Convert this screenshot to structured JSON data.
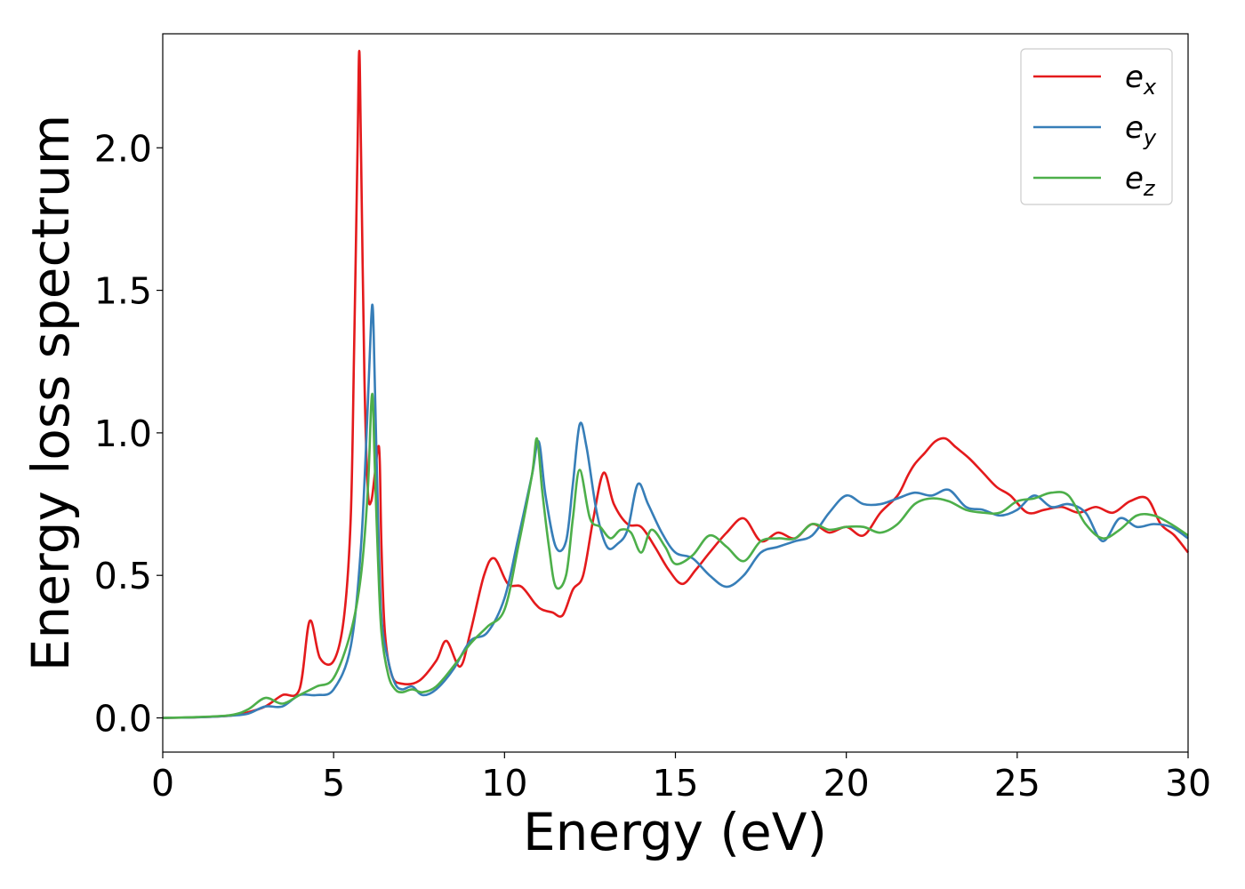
{
  "chart_data": {
    "type": "line",
    "xlabel": "Energy (eV)",
    "ylabel": "Energy loss spectrum",
    "xlim": [
      0,
      30
    ],
    "ylim": [
      -0.12,
      2.4
    ],
    "xticks": [
      0,
      5,
      10,
      15,
      20,
      25,
      30
    ],
    "xtick_labels": [
      "0",
      "5",
      "10",
      "15",
      "20",
      "25",
      "30"
    ],
    "yticks": [
      0.0,
      0.5,
      1.0,
      1.5,
      2.0
    ],
    "ytick_labels": [
      "0.0",
      "0.5",
      "1.0",
      "1.5",
      "2.0"
    ],
    "grid": false,
    "legend_position": "top-right",
    "series": [
      {
        "name": "e_x",
        "label_main": "e",
        "label_sub": "x",
        "color": "#e41a1c",
        "x": [
          0,
          1,
          2,
          2.5,
          3,
          3.5,
          4,
          4.3,
          4.6,
          5,
          5.3,
          5.5,
          5.6,
          5.7,
          5.75,
          5.8,
          5.9,
          6.0,
          6.1,
          6.2,
          6.3,
          6.35,
          6.4,
          6.5,
          6.7,
          7,
          7.5,
          8,
          8.3,
          8.7,
          9,
          9.4,
          9.7,
          10.1,
          10.5,
          10.9,
          11.1,
          11.4,
          11.7,
          12,
          12.3,
          12.6,
          12.9,
          13.2,
          13.6,
          14,
          14.4,
          14.8,
          15.2,
          15.6,
          16,
          16.5,
          17,
          17.5,
          18,
          18.5,
          19,
          19.5,
          20,
          20.5,
          21,
          21.5,
          21.8,
          22,
          22.3,
          22.6,
          22.9,
          23.2,
          23.6,
          24,
          24.4,
          24.8,
          25.3,
          25.8,
          26.3,
          26.8,
          27.3,
          27.8,
          28.3,
          28.8,
          29.2,
          29.6,
          30
        ],
        "y": [
          0,
          0.002,
          0.008,
          0.02,
          0.04,
          0.08,
          0.1,
          0.34,
          0.21,
          0.2,
          0.35,
          0.7,
          1.3,
          2.0,
          2.34,
          2.0,
          1.2,
          0.8,
          0.76,
          0.85,
          0.95,
          0.9,
          0.6,
          0.3,
          0.15,
          0.12,
          0.13,
          0.2,
          0.27,
          0.18,
          0.3,
          0.5,
          0.56,
          0.47,
          0.46,
          0.4,
          0.38,
          0.37,
          0.36,
          0.45,
          0.5,
          0.7,
          0.86,
          0.75,
          0.68,
          0.67,
          0.6,
          0.52,
          0.47,
          0.52,
          0.58,
          0.65,
          0.7,
          0.62,
          0.65,
          0.63,
          0.68,
          0.65,
          0.67,
          0.64,
          0.72,
          0.78,
          0.85,
          0.89,
          0.93,
          0.97,
          0.98,
          0.95,
          0.91,
          0.86,
          0.81,
          0.78,
          0.72,
          0.73,
          0.74,
          0.72,
          0.74,
          0.72,
          0.76,
          0.77,
          0.68,
          0.64,
          0.58
        ]
      },
      {
        "name": "e_y",
        "label_main": "e",
        "label_sub": "y",
        "color": "#377eb8",
        "x": [
          0,
          1,
          2,
          2.5,
          3,
          3.5,
          4,
          4.5,
          5,
          5.5,
          5.8,
          6.0,
          6.1,
          6.15,
          6.2,
          6.3,
          6.4,
          6.6,
          6.8,
          7,
          7.3,
          7.6,
          8,
          8.5,
          9,
          9.5,
          10,
          10.4,
          10.8,
          11,
          11.2,
          11.5,
          11.8,
          12,
          12.2,
          12.4,
          12.7,
          13,
          13.3,
          13.6,
          13.9,
          14.2,
          14.6,
          15,
          15.5,
          16,
          16.5,
          17,
          17.5,
          18,
          18.5,
          19,
          19.5,
          20,
          20.5,
          21,
          21.5,
          22,
          22.5,
          23,
          23.5,
          24,
          24.5,
          25,
          25.5,
          26,
          26.5,
          27,
          27.5,
          28,
          28.5,
          29,
          29.5,
          30
        ],
        "y": [
          0,
          0.002,
          0.008,
          0.015,
          0.04,
          0.04,
          0.08,
          0.08,
          0.1,
          0.25,
          0.6,
          1.1,
          1.4,
          1.43,
          1.2,
          0.7,
          0.35,
          0.2,
          0.12,
          0.1,
          0.11,
          0.08,
          0.1,
          0.17,
          0.27,
          0.3,
          0.42,
          0.63,
          0.85,
          0.97,
          0.78,
          0.6,
          0.62,
          0.82,
          1.03,
          0.95,
          0.72,
          0.6,
          0.61,
          0.66,
          0.82,
          0.75,
          0.65,
          0.58,
          0.56,
          0.5,
          0.46,
          0.5,
          0.58,
          0.6,
          0.62,
          0.64,
          0.72,
          0.78,
          0.75,
          0.75,
          0.77,
          0.79,
          0.78,
          0.8,
          0.74,
          0.73,
          0.71,
          0.73,
          0.78,
          0.74,
          0.75,
          0.72,
          0.62,
          0.7,
          0.67,
          0.68,
          0.67,
          0.63
        ]
      },
      {
        "name": "e_z",
        "label_main": "e",
        "label_sub": "z",
        "color": "#4daf4a",
        "x": [
          0,
          1,
          2,
          2.5,
          3,
          3.5,
          4,
          4.5,
          5,
          5.5,
          5.8,
          6.0,
          6.1,
          6.15,
          6.2,
          6.3,
          6.4,
          6.6,
          6.8,
          7,
          7.3,
          7.6,
          8,
          8.5,
          9,
          9.5,
          10,
          10.4,
          10.8,
          10.95,
          11.1,
          11.3,
          11.5,
          11.8,
          12,
          12.2,
          12.5,
          12.8,
          13.1,
          13.4,
          13.7,
          14,
          14.3,
          14.7,
          15,
          15.5,
          16,
          16.5,
          17,
          17.5,
          18,
          18.5,
          19,
          19.5,
          20,
          20.5,
          21,
          21.5,
          22,
          22.5,
          23,
          23.5,
          24,
          24.5,
          25,
          25.5,
          26,
          26.5,
          27,
          27.5,
          28,
          28.5,
          29,
          29.5,
          30
        ],
        "y": [
          0,
          0.003,
          0.01,
          0.03,
          0.07,
          0.05,
          0.08,
          0.11,
          0.14,
          0.3,
          0.5,
          0.8,
          1.1,
          1.11,
          0.9,
          0.55,
          0.3,
          0.15,
          0.1,
          0.09,
          0.1,
          0.09,
          0.11,
          0.18,
          0.26,
          0.32,
          0.38,
          0.6,
          0.85,
          0.98,
          0.8,
          0.6,
          0.46,
          0.5,
          0.7,
          0.87,
          0.7,
          0.67,
          0.63,
          0.66,
          0.65,
          0.58,
          0.66,
          0.6,
          0.54,
          0.57,
          0.64,
          0.6,
          0.55,
          0.62,
          0.63,
          0.63,
          0.68,
          0.66,
          0.67,
          0.67,
          0.65,
          0.68,
          0.75,
          0.77,
          0.76,
          0.73,
          0.72,
          0.72,
          0.76,
          0.77,
          0.79,
          0.78,
          0.68,
          0.63,
          0.66,
          0.71,
          0.71,
          0.68,
          0.64
        ]
      }
    ]
  }
}
